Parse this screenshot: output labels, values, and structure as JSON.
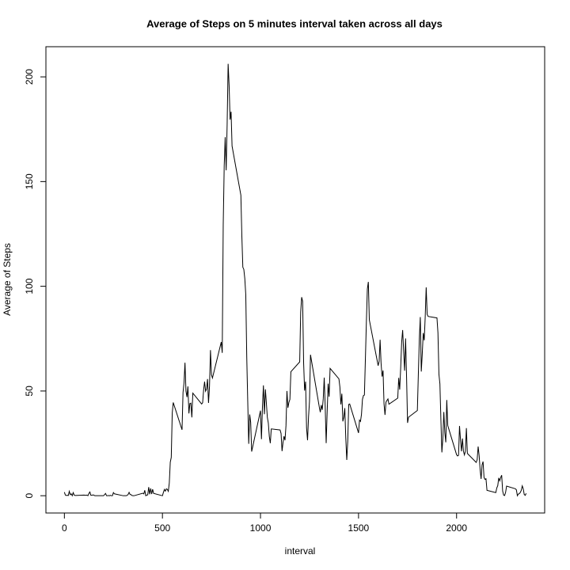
{
  "chart_data": {
    "type": "line",
    "title": "Average of Steps on 5 minutes interval taken across all days",
    "xlabel": "interval",
    "ylabel": "Average of Steps",
    "color": "#000000",
    "xlim": [
      -94.2,
      2449.2
    ],
    "xticks": [
      0,
      500,
      1000,
      1500,
      2000
    ],
    "ylim": [
      -8.25,
      214.4
    ],
    "yticks": [
      0,
      50,
      100,
      150,
      200
    ],
    "x": [
      0,
      5,
      10,
      15,
      20,
      25,
      30,
      35,
      40,
      45,
      50,
      55,
      100,
      110,
      115,
      120,
      125,
      130,
      135,
      140,
      145,
      150,
      155,
      200,
      210,
      215,
      220,
      225,
      230,
      235,
      240,
      245,
      250,
      255,
      300,
      310,
      315,
      320,
      325,
      330,
      335,
      340,
      345,
      350,
      355,
      400,
      405,
      410,
      415,
      420,
      425,
      430,
      435,
      440,
      445,
      450,
      455,
      500,
      505,
      510,
      515,
      520,
      525,
      530,
      535,
      540,
      545,
      550,
      555,
      600,
      605,
      610,
      615,
      620,
      625,
      630,
      635,
      640,
      645,
      650,
      655,
      700,
      705,
      710,
      715,
      720,
      725,
      730,
      735,
      740,
      745,
      750,
      755,
      800,
      805,
      810,
      815,
      820,
      825,
      830,
      835,
      840,
      845,
      850,
      855,
      900,
      905,
      910,
      915,
      920,
      925,
      930,
      935,
      940,
      945,
      950,
      955,
      1000,
      1005,
      1010,
      1015,
      1020,
      1025,
      1030,
      1035,
      1040,
      1045,
      1050,
      1055,
      1100,
      1105,
      1110,
      1115,
      1120,
      1125,
      1130,
      1135,
      1140,
      1145,
      1150,
      1155,
      1200,
      1205,
      1210,
      1215,
      1220,
      1225,
      1230,
      1235,
      1240,
      1245,
      1250,
      1255,
      1300,
      1305,
      1310,
      1315,
      1320,
      1325,
      1330,
      1335,
      1340,
      1345,
      1350,
      1355,
      1400,
      1405,
      1410,
      1415,
      1420,
      1425,
      1430,
      1435,
      1440,
      1445,
      1450,
      1455,
      1500,
      1505,
      1510,
      1515,
      1520,
      1525,
      1530,
      1535,
      1540,
      1545,
      1550,
      1555,
      1600,
      1605,
      1610,
      1615,
      1620,
      1625,
      1630,
      1635,
      1640,
      1645,
      1650,
      1655,
      1700,
      1705,
      1710,
      1715,
      1720,
      1725,
      1730,
      1735,
      1740,
      1745,
      1750,
      1755,
      1800,
      1805,
      1810,
      1815,
      1820,
      1825,
      1830,
      1835,
      1840,
      1845,
      1850,
      1855,
      1900,
      1905,
      1910,
      1915,
      1920,
      1925,
      1930,
      1935,
      1940,
      1945,
      1950,
      1955,
      2000,
      2005,
      2010,
      2015,
      2020,
      2025,
      2030,
      2035,
      2040,
      2045,
      2050,
      2055,
      2100,
      2105,
      2110,
      2115,
      2120,
      2125,
      2130,
      2135,
      2140,
      2145,
      2150,
      2155,
      2200,
      2205,
      2210,
      2215,
      2220,
      2225,
      2230,
      2235,
      2240,
      2245,
      2250,
      2255,
      2300,
      2305,
      2310,
      2315,
      2320,
      2325,
      2330,
      2335,
      2340,
      2345,
      2350,
      2355
    ],
    "values": [
      1.7,
      0.3,
      0.1,
      0.2,
      0.1,
      2.1,
      0.5,
      0.9,
      0,
      1.5,
      0.3,
      0.1,
      0.3,
      0.2,
      0.3,
      0,
      1.1,
      1.8,
      0.2,
      0.2,
      0.4,
      0.3,
      0,
      0,
      1.1,
      0,
      0,
      0.1,
      0,
      0.2,
      0,
      0,
      1.5,
      0.9,
      0,
      0,
      0,
      0.2,
      0.6,
      1.6,
      0.6,
      0.5,
      0.1,
      0,
      0,
      1.2,
      0.9,
      2.6,
      0,
      0.3,
      0.4,
      4.1,
      0.7,
      3.5,
      0.8,
      3.1,
      1.1,
      0,
      1.6,
      3,
      2.2,
      3.3,
      3,
      2.1,
      6.1,
      16,
      18.3,
      39.5,
      44.5,
      31.5,
      49.3,
      53.8,
      63.5,
      50,
      47.1,
      52.2,
      39.3,
      44,
      44.2,
      37.4,
      49,
      43.8,
      44.4,
      50.5,
      54.5,
      49.9,
      50.9,
      55.7,
      44.3,
      52.3,
      69.5,
      57.8,
      56.2,
      73.4,
      68.2,
      129.4,
      157.5,
      171.2,
      155.4,
      177.3,
      206.2,
      195.9,
      179.6,
      183.4,
      167,
      143.5,
      124,
      109.1,
      108.1,
      103.7,
      96,
      66.2,
      45.2,
      24.8,
      38.8,
      35,
      21.1,
      40.6,
      27,
      42.4,
      52.7,
      38.9,
      50.8,
      44.3,
      37.4,
      34.7,
      28.3,
      25.1,
      31.9,
      31.4,
      29.7,
      21.3,
      25.5,
      28.4,
      26.5,
      33.4,
      50,
      42,
      44.6,
      46,
      59.2,
      63.9,
      87.7,
      94.8,
      92.8,
      63.4,
      50.2,
      54.5,
      32.4,
      26.5,
      37.7,
      45.1,
      67.3,
      42.3,
      39.9,
      43.3,
      41,
      46.2,
      56.4,
      42.8,
      25.1,
      40,
      53.5,
      47.3,
      60.8,
      55.8,
      51.9,
      43.6,
      48.7,
      35.5,
      37.5,
      41.8,
      27.5,
      17.1,
      26.1,
      43.6,
      43.8,
      30,
      36.1,
      35.5,
      38.8,
      46,
      47.8,
      48.1,
      65.3,
      82.9,
      98.7,
      102.1,
      84,
      62.1,
      64.1,
      74.5,
      63.2,
      56.9,
      59.8,
      43.9,
      38.6,
      44.7,
      45.5,
      46.2,
      43.7,
      46.6,
      56.3,
      50.7,
      61.2,
      73.4,
      79.1,
      68.9,
      59.7,
      75.1,
      56.5,
      34.8,
      37.5,
      40.7,
      58,
      74.7,
      85.3,
      59.3,
      67.8,
      77.7,
      74.2,
      85.3,
      99.5,
      86.6,
      85.6,
      84.9,
      77.8,
      58,
      53.4,
      36.3,
      20.7,
      27.4,
      40,
      30.2,
      25.5,
      45.7,
      33.5,
      19.6,
      19,
      19.3,
      33.3,
      26.8,
      21.2,
      27.3,
      21.3,
      19.5,
      21.3,
      32.3,
      20.2,
      15.9,
      17.2,
      23.5,
      19.2,
      12.5,
      8,
      14.7,
      16.3,
      8.7,
      7.8,
      8.1,
      2.6,
      1.5,
      3.7,
      4.8,
      8.5,
      7.1,
      8.7,
      9.8,
      2.2,
      0.3,
      0.1,
      1.6,
      4.6,
      3.3,
      2.8,
      0,
      0.8,
      1,
      1.6,
      2.6,
      4.7,
      3.3,
      0.6,
      0.2,
      1.1
    ]
  }
}
